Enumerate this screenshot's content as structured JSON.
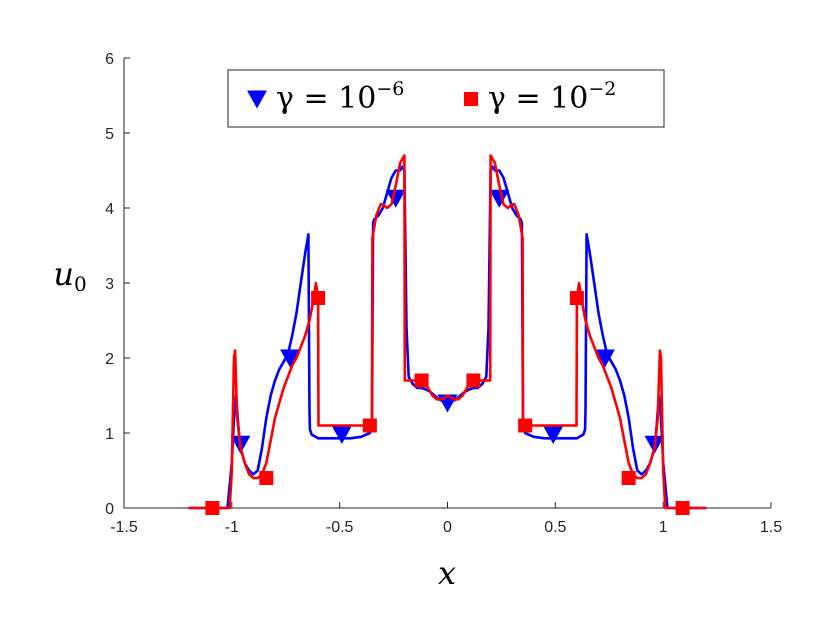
{
  "chart_data": {
    "type": "line",
    "xlabel": "x",
    "ylabel_main": "u",
    "ylabel_sub": "0",
    "xlim": [
      -1.5,
      1.5
    ],
    "ylim": [
      0,
      6
    ],
    "xticks": [
      -1.5,
      -1,
      -0.5,
      0,
      0.5,
      1,
      1.5
    ],
    "xtick_labels": [
      "-1.5",
      "-1",
      "-0.5",
      "0",
      "0.5",
      "1",
      "1.5"
    ],
    "yticks": [
      0,
      1,
      2,
      3,
      4,
      5,
      6
    ],
    "ytick_labels": [
      "0",
      "1",
      "2",
      "3",
      "4",
      "5",
      "6"
    ],
    "grid": false,
    "legend_position": "top",
    "series": [
      {
        "name_prefix": "γ = 10",
        "name_exponent": "−6",
        "color": "#0000ff",
        "marker": "triangle-down",
        "x": [
          -1.2,
          -1.08,
          -1.02,
          -1.0,
          -0.99,
          -0.98,
          -0.97,
          -0.96,
          -0.94,
          -0.92,
          -0.9,
          -0.88,
          -0.86,
          -0.84,
          -0.82,
          -0.8,
          -0.78,
          -0.76,
          -0.74,
          -0.72,
          -0.7,
          -0.68,
          -0.66,
          -0.645,
          -0.64,
          -0.638,
          -0.63,
          -0.6,
          -0.55,
          -0.5,
          -0.45,
          -0.4,
          -0.36,
          -0.35,
          -0.345,
          -0.34,
          -0.32,
          -0.3,
          -0.28,
          -0.26,
          -0.24,
          -0.22,
          -0.21,
          -0.2,
          -0.19,
          -0.18,
          -0.16,
          -0.14,
          -0.12,
          -0.1,
          -0.08,
          -0.06,
          -0.04,
          -0.02,
          0,
          0.02,
          0.04,
          0.06,
          0.08,
          0.1,
          0.12,
          0.14,
          0.16,
          0.18,
          0.19,
          0.2,
          0.21,
          0.22,
          0.24,
          0.26,
          0.28,
          0.3,
          0.32,
          0.34,
          0.345,
          0.35,
          0.36,
          0.4,
          0.45,
          0.5,
          0.55,
          0.6,
          0.63,
          0.638,
          0.64,
          0.645,
          0.66,
          0.68,
          0.7,
          0.72,
          0.74,
          0.76,
          0.78,
          0.8,
          0.82,
          0.84,
          0.86,
          0.88,
          0.9,
          0.92,
          0.94,
          0.96,
          0.97,
          0.98,
          0.99,
          1.0,
          1.02,
          1.08,
          1.2
        ],
        "y": [
          0,
          0,
          0,
          0.6,
          1.2,
          1.5,
          1.1,
          0.8,
          0.6,
          0.5,
          0.45,
          0.5,
          0.8,
          1.2,
          1.5,
          1.7,
          1.85,
          1.95,
          2.05,
          2.3,
          2.6,
          3.0,
          3.4,
          3.65,
          1.3,
          1.05,
          0.98,
          0.93,
          0.93,
          0.93,
          0.93,
          0.95,
          1.0,
          1.15,
          3.8,
          3.85,
          3.9,
          4.0,
          4.2,
          4.4,
          4.5,
          4.5,
          4.55,
          4.5,
          2.4,
          1.75,
          1.65,
          1.6,
          1.6,
          1.58,
          1.55,
          1.5,
          1.45,
          1.42,
          1.4,
          1.42,
          1.45,
          1.5,
          1.55,
          1.58,
          1.6,
          1.6,
          1.65,
          1.75,
          2.4,
          4.5,
          4.55,
          4.5,
          4.5,
          4.4,
          4.2,
          4.0,
          3.9,
          3.85,
          3.8,
          1.15,
          1.0,
          0.95,
          0.93,
          0.93,
          0.93,
          0.93,
          0.98,
          1.05,
          1.3,
          3.65,
          3.4,
          3.0,
          2.6,
          2.3,
          2.05,
          1.95,
          1.85,
          1.7,
          1.5,
          1.2,
          0.8,
          0.5,
          0.45,
          0.5,
          0.6,
          0.8,
          1.1,
          1.5,
          1.2,
          0.6,
          0,
          0,
          0
        ],
        "markers_x": [
          -0.96,
          -0.73,
          -0.49,
          -0.24,
          0,
          0.24,
          0.49,
          0.73,
          0.96
        ],
        "markers_y": [
          0.85,
          2.0,
          0.98,
          4.13,
          1.4,
          4.13,
          0.98,
          2.0,
          0.85
        ]
      },
      {
        "name_prefix": "γ = 10",
        "name_exponent": "−2",
        "color": "#ff0000",
        "marker": "square",
        "x": [
          -1.2,
          -1.04,
          -1.01,
          -1.0,
          -0.99,
          -0.985,
          -0.975,
          -0.96,
          -0.94,
          -0.92,
          -0.9,
          -0.88,
          -0.86,
          -0.84,
          -0.82,
          -0.8,
          -0.78,
          -0.76,
          -0.74,
          -0.72,
          -0.7,
          -0.68,
          -0.66,
          -0.64,
          -0.62,
          -0.61,
          -0.6,
          -0.598,
          -0.59,
          -0.55,
          -0.5,
          -0.45,
          -0.4,
          -0.36,
          -0.35,
          -0.348,
          -0.33,
          -0.31,
          -0.3,
          -0.28,
          -0.26,
          -0.24,
          -0.22,
          -0.2,
          -0.198,
          -0.19,
          -0.17,
          -0.15,
          -0.13,
          -0.11,
          -0.09,
          -0.07,
          -0.05,
          -0.03,
          -0.01,
          0,
          0.01,
          0.03,
          0.05,
          0.07,
          0.09,
          0.11,
          0.13,
          0.15,
          0.17,
          0.19,
          0.198,
          0.2,
          0.22,
          0.24,
          0.26,
          0.28,
          0.3,
          0.31,
          0.33,
          0.348,
          0.35,
          0.36,
          0.4,
          0.45,
          0.5,
          0.55,
          0.59,
          0.598,
          0.6,
          0.61,
          0.62,
          0.64,
          0.66,
          0.68,
          0.7,
          0.72,
          0.74,
          0.76,
          0.78,
          0.8,
          0.82,
          0.84,
          0.86,
          0.88,
          0.9,
          0.92,
          0.94,
          0.96,
          0.975,
          0.985,
          0.99,
          1.0,
          1.01,
          1.04,
          1.2
        ],
        "y": [
          0,
          0,
          0,
          0.5,
          2.0,
          2.1,
          1.2,
          0.8,
          0.6,
          0.45,
          0.4,
          0.4,
          0.45,
          0.6,
          0.9,
          1.2,
          1.4,
          1.6,
          1.75,
          1.9,
          2.0,
          2.15,
          2.3,
          2.5,
          2.8,
          3.0,
          2.8,
          1.1,
          1.1,
          1.1,
          1.1,
          1.1,
          1.1,
          1.1,
          1.1,
          3.6,
          3.9,
          4.05,
          4.05,
          4.0,
          4.05,
          4.3,
          4.6,
          4.7,
          1.7,
          1.7,
          1.7,
          1.7,
          1.7,
          1.68,
          1.6,
          1.5,
          1.45,
          1.45,
          1.48,
          1.5,
          1.48,
          1.45,
          1.45,
          1.5,
          1.6,
          1.68,
          1.7,
          1.7,
          1.7,
          1.7,
          1.7,
          4.7,
          4.6,
          4.3,
          4.05,
          4.0,
          4.05,
          4.05,
          3.9,
          3.6,
          1.1,
          1.1,
          1.1,
          1.1,
          1.1,
          1.1,
          1.1,
          1.1,
          2.8,
          3.0,
          2.8,
          2.5,
          2.3,
          2.15,
          2.0,
          1.9,
          1.75,
          1.6,
          1.4,
          1.2,
          0.9,
          0.6,
          0.45,
          0.4,
          0.4,
          0.45,
          0.6,
          0.8,
          1.2,
          2.1,
          2.0,
          0.5,
          0,
          0,
          0
        ],
        "markers_x": [
          -1.09,
          -0.84,
          -0.6,
          -0.36,
          -0.12,
          0.12,
          0.36,
          0.6,
          0.84,
          1.09
        ],
        "markers_y": [
          0,
          0.4,
          2.8,
          1.1,
          1.7,
          1.7,
          1.1,
          2.8,
          0.4,
          0
        ]
      }
    ]
  }
}
